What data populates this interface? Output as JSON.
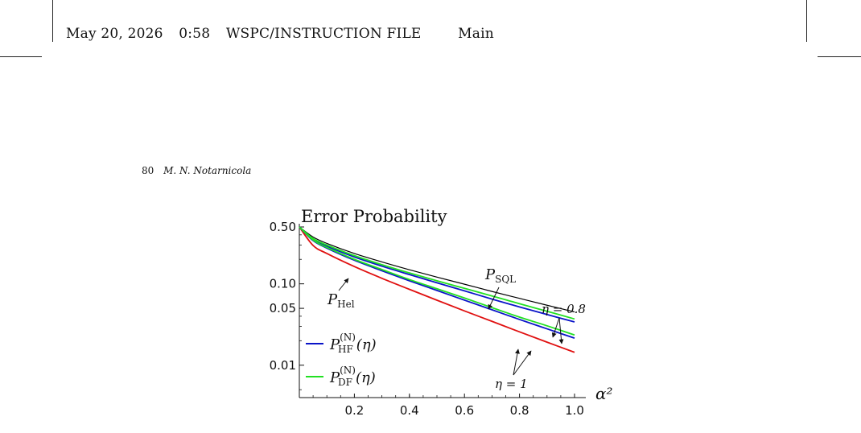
{
  "running_head": {
    "date": "May 20, 2026",
    "time": "0:58",
    "file_label": "WSPC/INSTRUCTION FILE",
    "file_name": "Main"
  },
  "page_header": {
    "page_number": "80",
    "author": "M. N. Notarnicola"
  },
  "chart_data": {
    "type": "line",
    "title": "Error Probability",
    "xlabel": "α²",
    "ylabel": "",
    "xlim": [
      0,
      1.0
    ],
    "ylim": [
      0.004,
      0.5
    ],
    "y_scale": "log",
    "grid": false,
    "x_ticks": [
      "0.2",
      "0.4",
      "0.6",
      "0.8",
      "1.0"
    ],
    "x_tick_values": [
      0.2,
      0.4,
      0.6,
      0.8,
      1.0
    ],
    "y_ticks": [
      "0.50",
      "0.10",
      "0.05",
      "0.01"
    ],
    "y_tick_values": [
      0.5,
      0.1,
      0.05,
      0.01
    ],
    "colors": {
      "sql": "#000000",
      "hel": "#e01010",
      "hf": "#0a14c8",
      "df": "#22e022"
    },
    "series": [
      {
        "key": "sql",
        "x": [
          0,
          0.05,
          0.1,
          0.2,
          0.3,
          0.4,
          0.5,
          0.6,
          0.7,
          0.8,
          0.9,
          1.0
        ],
        "values": [
          0.5,
          0.376,
          0.314,
          0.236,
          0.186,
          0.149,
          0.121,
          0.099,
          0.0806,
          0.0663,
          0.0546,
          0.0451
        ]
      },
      {
        "key": "hel",
        "x": [
          0,
          0.05,
          0.1,
          0.2,
          0.3,
          0.4,
          0.5,
          0.6,
          0.7,
          0.8,
          0.9,
          1.0
        ],
        "values": [
          0.5,
          0.296,
          0.236,
          0.163,
          0.117,
          0.0856,
          0.0629,
          0.0465,
          0.0346,
          0.0257,
          0.0192,
          0.0144
        ]
      },
      {
        "key": "hf_eta08",
        "x": [
          0,
          0.05,
          0.1,
          0.2,
          0.3,
          0.4,
          0.5,
          0.6,
          0.7,
          0.8,
          0.9,
          1.0
        ],
        "values": [
          0.5,
          0.35,
          0.29,
          0.214,
          0.165,
          0.13,
          0.103,
          0.082,
          0.065,
          0.052,
          0.042,
          0.034
        ]
      },
      {
        "key": "df_eta08",
        "x": [
          0,
          0.05,
          0.1,
          0.2,
          0.3,
          0.4,
          0.5,
          0.6,
          0.7,
          0.8,
          0.9,
          1.0
        ],
        "values": [
          0.5,
          0.36,
          0.3,
          0.222,
          0.172,
          0.136,
          0.109,
          0.088,
          0.071,
          0.057,
          0.046,
          0.037
        ]
      },
      {
        "key": "hf_eta1",
        "x": [
          0,
          0.05,
          0.1,
          0.2,
          0.3,
          0.4,
          0.5,
          0.6,
          0.7,
          0.8,
          0.9,
          1.0
        ],
        "values": [
          0.5,
          0.34,
          0.275,
          0.195,
          0.145,
          0.109,
          0.083,
          0.063,
          0.048,
          0.0365,
          0.028,
          0.0215
        ]
      },
      {
        "key": "df_eta1",
        "x": [
          0,
          0.05,
          0.1,
          0.2,
          0.3,
          0.4,
          0.5,
          0.6,
          0.7,
          0.8,
          0.9,
          1.0
        ],
        "values": [
          0.5,
          0.345,
          0.28,
          0.2,
          0.15,
          0.113,
          0.087,
          0.067,
          0.051,
          0.039,
          0.0305,
          0.0235
        ]
      }
    ],
    "annotations": {
      "sql": "P_SQL",
      "hel": "P_Hel",
      "eta08": "η = 0.8",
      "eta1": "η = 1"
    },
    "legend": {
      "placement": "bottom-left",
      "hf": "P_HF^(N)(η)",
      "df": "P_DF^(N)(η)"
    }
  }
}
